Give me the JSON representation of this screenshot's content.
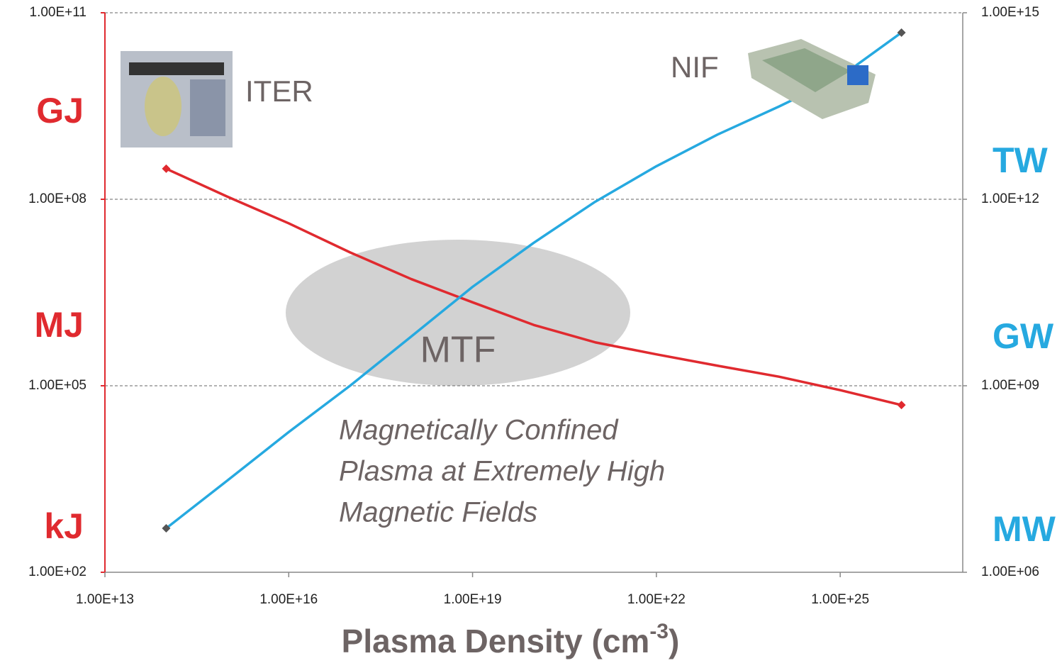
{
  "chart_data": {
    "type": "line",
    "x_scale": "log",
    "y_scale": "log",
    "grid": true,
    "x_label": {
      "main": "Plasma Density (cm",
      "sup": "-3",
      "end": ")"
    },
    "x": [
      100000000000000.0,
      1000000000000000.0,
      1e+16,
      1e+17,
      1e+18,
      1e+19,
      1e+20,
      1e+21,
      1e+22,
      1e+23,
      1e+24,
      1e+25,
      1e+26
    ],
    "xlim": [
      10000000000000.0,
      1e+27
    ],
    "xticks": [
      {
        "value": 10000000000000.0,
        "label": "1.00E+13"
      },
      {
        "value": 1e+16,
        "label": "1.00E+16"
      },
      {
        "value": 1e+19,
        "label": "1.00E+19"
      },
      {
        "value": 1e+22,
        "label": "1.00E+22"
      },
      {
        "value": 1e+25,
        "label": "1.00E+25"
      }
    ],
    "ylim": [
      100,
      100000000000.0
    ],
    "yticks": [
      {
        "value": 100,
        "label": "1.00E+02"
      },
      {
        "value": 100000,
        "label": "1.00E+05"
      },
      {
        "value": 100000000,
        "label": "1.00E+08"
      },
      {
        "value": 100000000000.0,
        "label": "1.00E+11"
      }
    ],
    "y2lim": [
      1000000.0,
      1000000000000000.0
    ],
    "y2ticks": [
      {
        "value": 1000000.0,
        "label": "1.00E+06"
      },
      {
        "value": 1000000000.0,
        "label": "1.00E+09"
      },
      {
        "value": 1000000000000.0,
        "label": "1.00E+12"
      },
      {
        "value": 1000000000000000.0,
        "label": "1.00E+15"
      }
    ],
    "series": [
      {
        "color": "#e02a2f",
        "values": [
          310000000.0,
          110000000.0,
          41000000.0,
          14000000.0,
          5200000.0,
          2200000.0,
          950000.0,
          500000.0,
          320000.0,
          210000.0,
          140000.0,
          85000.0,
          49000.0
        ]
      },
      {
        "color": "#26a9e0",
        "axis": "y2",
        "values": [
          5100000.0,
          30000000.0,
          180000000.0,
          1000000000.0,
          6200000000.0,
          39000000000.0,
          200000000000.0,
          910000000000.0,
          3400000000000.0,
          11000000000000.0,
          31000000000000.0,
          93000000000000.0,
          480000000000000.0
        ]
      }
    ],
    "energy_units": [
      "GJ",
      "MJ",
      "kJ"
    ],
    "power_units": [
      "TW",
      "GW",
      "MW"
    ],
    "annotations": {
      "iter": "ITER",
      "nif": "NIF",
      "mtf": "MTF",
      "description": [
        "Magnetically Confined",
        "Plasma at Extremely High",
        "Magnetic Fields"
      ]
    }
  }
}
